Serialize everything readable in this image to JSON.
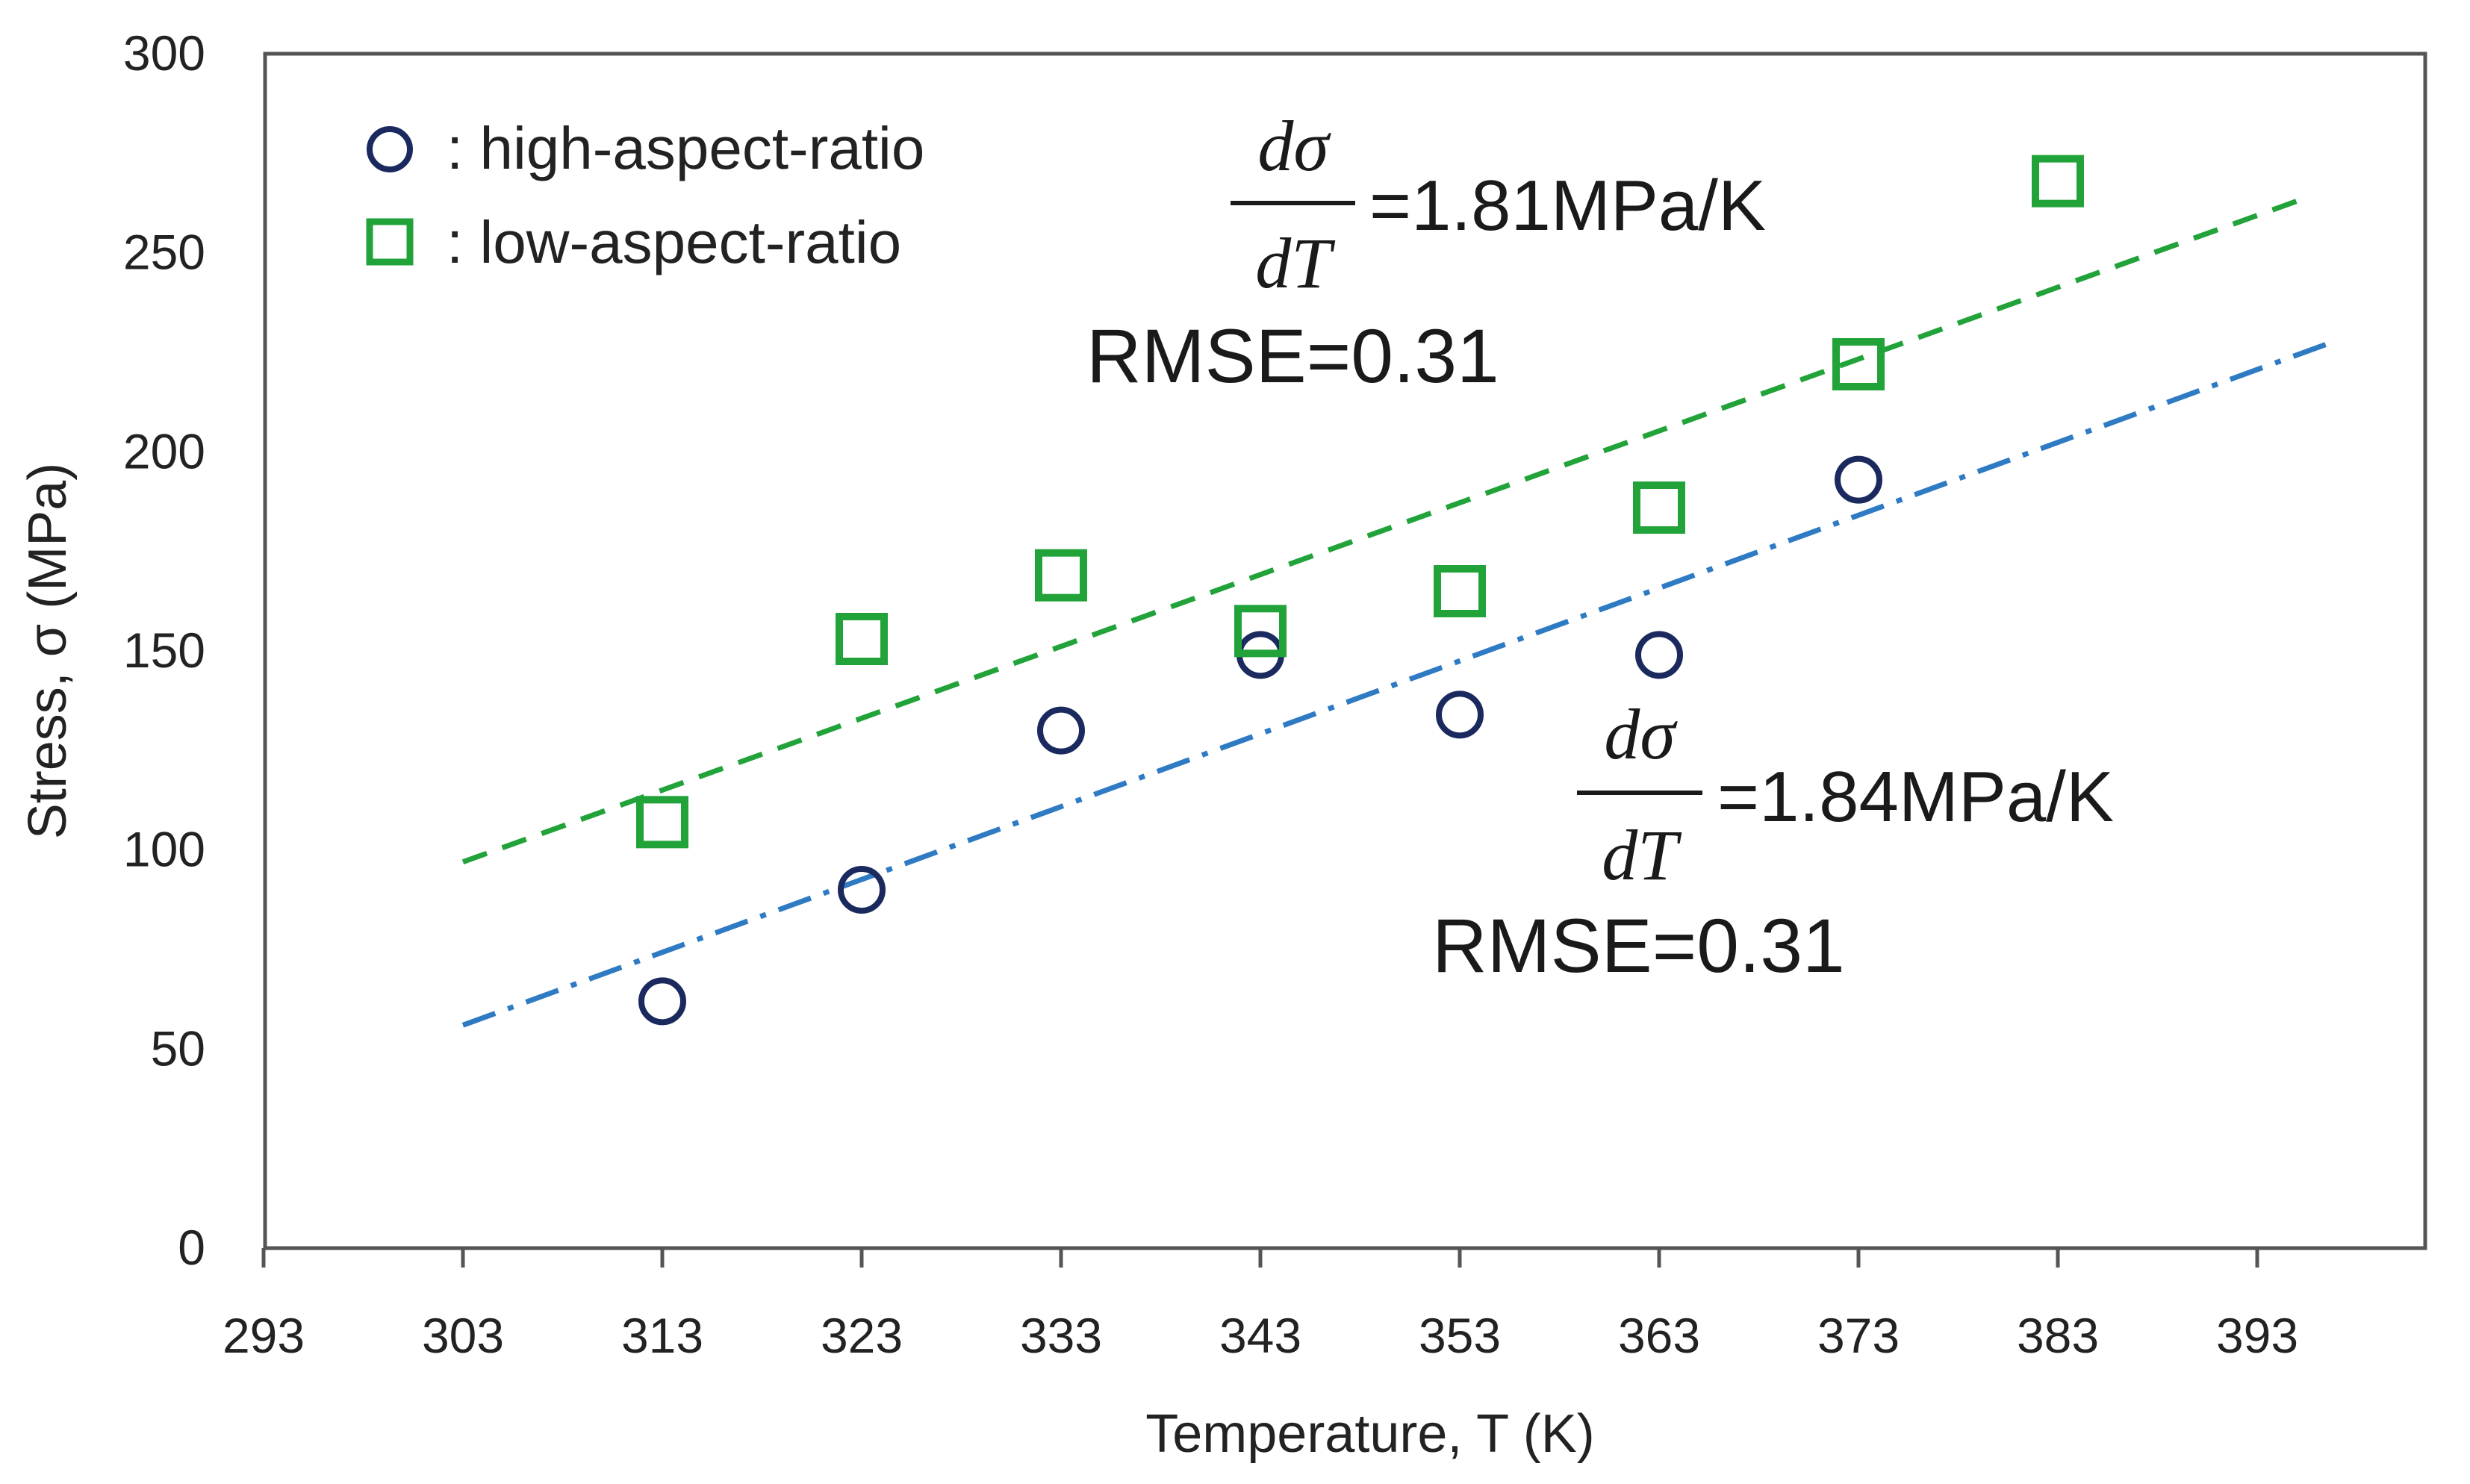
{
  "chart_data": {
    "type": "scatter",
    "title": "",
    "xlabel": "Temperature, T (K)",
    "ylabel": "Stress, σ (MPa)",
    "xlim": [
      293,
      403
    ],
    "ylim": [
      0,
      300
    ],
    "x_ticks": [
      293,
      303,
      313,
      323,
      333,
      343,
      353,
      363,
      373,
      383,
      393
    ],
    "y_ticks": [
      0,
      50,
      100,
      150,
      200,
      250,
      300
    ],
    "grid": false,
    "legend_position": "top-left",
    "series": [
      {
        "name": "high-aspect-ratio",
        "legend_label": ": high-aspect-ratio",
        "marker": "circle",
        "color": "#1b2a5e",
        "points": [
          {
            "x": 313,
            "y": 62
          },
          {
            "x": 323,
            "y": 90
          },
          {
            "x": 333,
            "y": 130
          },
          {
            "x": 343,
            "y": 149
          },
          {
            "x": 353,
            "y": 134
          },
          {
            "x": 363,
            "y": 149
          },
          {
            "x": 373,
            "y": 193
          }
        ],
        "fit": {
          "style": "dash-dot",
          "color": "#2e7bc4",
          "x_start": 303,
          "y_start": 56,
          "x_end": 397,
          "y_end": 228
        }
      },
      {
        "name": "low-aspect-ratio",
        "legend_label": ": low-aspect-ratio",
        "marker": "square",
        "color": "#22a33a",
        "points": [
          {
            "x": 313,
            "y": 107
          },
          {
            "x": 323,
            "y": 153
          },
          {
            "x": 333,
            "y": 169
          },
          {
            "x": 343,
            "y": 155
          },
          {
            "x": 353,
            "y": 165
          },
          {
            "x": 363,
            "y": 186
          },
          {
            "x": 373,
            "y": 222
          },
          {
            "x": 383,
            "y": 268
          }
        ],
        "fit": {
          "style": "dashed",
          "color": "#22a33a",
          "x_start": 303,
          "y_start": 97,
          "x_end": 395,
          "y_end": 263
        }
      }
    ],
    "annotations": [
      {
        "name": "low-aspect-ratio-fit",
        "numerator": "dσ",
        "denominator": "dT",
        "value": "=1.81MPa/K",
        "rmse": "RMSE=0.31"
      },
      {
        "name": "high-aspect-ratio-fit",
        "numerator": "dσ",
        "denominator": "dT",
        "value": "=1.84MPa/K",
        "rmse": "RMSE=0.31"
      }
    ]
  }
}
